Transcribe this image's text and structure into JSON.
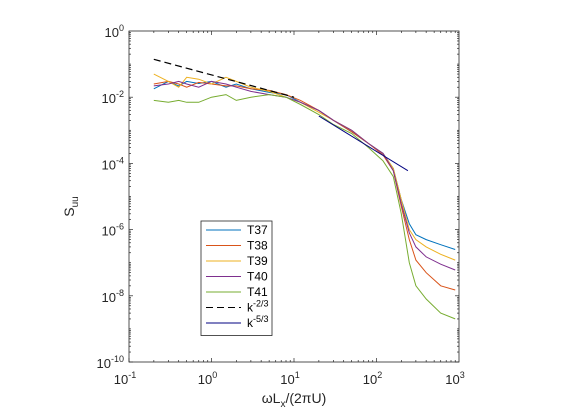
{
  "chart_data": {
    "type": "line",
    "xlabel": {
      "base": "ωL",
      "sub": "x",
      "tail": "/(2πU)"
    },
    "ylabel": {
      "base": "S",
      "sub": "uu"
    },
    "xscale": "log",
    "yscale": "log",
    "xlim": [
      0.1,
      1000
    ],
    "ylim": [
      1e-10,
      1
    ],
    "grid": false,
    "legend_position": "bottom-left",
    "x_ticks": [
      {
        "base": "10",
        "exp": "-1",
        "value": 0.1
      },
      {
        "base": "10",
        "exp": "0",
        "value": 1
      },
      {
        "base": "10",
        "exp": "1",
        "value": 10
      },
      {
        "base": "10",
        "exp": "2",
        "value": 100
      },
      {
        "base": "10",
        "exp": "3",
        "value": 1000
      }
    ],
    "y_ticks": [
      {
        "base": "10",
        "exp": "-10",
        "value": 1e-10
      },
      {
        "base": "10",
        "exp": "-8",
        "value": 1e-08
      },
      {
        "base": "10",
        "exp": "-6",
        "value": 1e-06
      },
      {
        "base": "10",
        "exp": "-4",
        "value": 0.0001
      },
      {
        "base": "10",
        "exp": "-2",
        "value": 0.01
      },
      {
        "base": "10",
        "exp": "0",
        "value": 1
      }
    ],
    "series": [
      {
        "name": "T37",
        "color": "#0072BD",
        "style": "solid",
        "x": [
          0.2,
          0.3,
          0.4,
          0.5,
          0.7,
          1,
          1.5,
          2,
          3,
          5,
          8,
          12,
          20,
          30,
          50,
          80,
          120,
          160,
          200,
          250,
          300,
          400,
          600,
          900
        ],
        "y": [
          0.018,
          0.03,
          0.022,
          0.03,
          0.026,
          0.03,
          0.02,
          0.025,
          0.018,
          0.014,
          0.012,
          0.007,
          0.004,
          0.002,
          0.0009,
          0.0004,
          0.0002,
          7e-05,
          8e-06,
          1.5e-06,
          7e-07,
          5e-07,
          3.5e-07,
          2.5e-07
        ]
      },
      {
        "name": "T38",
        "color": "#D95319",
        "style": "solid",
        "x": [
          0.2,
          0.3,
          0.4,
          0.5,
          0.7,
          1,
          1.5,
          2,
          3,
          5,
          8,
          12,
          20,
          30,
          50,
          80,
          120,
          160,
          200,
          250,
          300,
          400,
          600,
          900
        ],
        "y": [
          0.025,
          0.03,
          0.025,
          0.02,
          0.028,
          0.025,
          0.022,
          0.022,
          0.018,
          0.016,
          0.012,
          0.008,
          0.004,
          0.002,
          0.0009,
          0.0004,
          0.00018,
          6e-05,
          5e-06,
          5e-07,
          1.2e-07,
          5e-08,
          2e-08,
          1.5e-08
        ]
      },
      {
        "name": "T39",
        "color": "#EDB120",
        "style": "solid",
        "x": [
          0.2,
          0.3,
          0.4,
          0.5,
          0.7,
          1,
          1.5,
          2,
          3,
          5,
          8,
          12,
          20,
          30,
          50,
          80,
          120,
          160,
          200,
          250,
          300,
          400,
          600,
          900
        ],
        "y": [
          0.05,
          0.03,
          0.02,
          0.04,
          0.035,
          0.025,
          0.04,
          0.03,
          0.02,
          0.015,
          0.01,
          0.007,
          0.0035,
          0.002,
          0.001,
          0.0004,
          0.0002,
          7e-05,
          8e-06,
          1e-06,
          5e-07,
          3e-07,
          1.8e-07,
          1.2e-07
        ]
      },
      {
        "name": "T40",
        "color": "#7E2F8E",
        "style": "solid",
        "x": [
          0.2,
          0.3,
          0.4,
          0.5,
          0.7,
          1,
          1.5,
          2,
          3,
          5,
          8,
          12,
          20,
          30,
          50,
          80,
          120,
          160,
          200,
          250,
          300,
          400,
          600,
          900
        ],
        "y": [
          0.022,
          0.025,
          0.03,
          0.025,
          0.02,
          0.03,
          0.025,
          0.02,
          0.015,
          0.012,
          0.01,
          0.007,
          0.004,
          0.002,
          0.001,
          0.0004,
          0.0002,
          6e-05,
          6e-06,
          8e-07,
          3e-07,
          1.5e-07,
          9e-08,
          6e-08
        ]
      },
      {
        "name": "T41",
        "color": "#77AC30",
        "style": "solid",
        "x": [
          0.2,
          0.3,
          0.4,
          0.5,
          0.7,
          1,
          1.5,
          2,
          3,
          5,
          8,
          12,
          20,
          30,
          50,
          80,
          120,
          160,
          200,
          250,
          300,
          400,
          600,
          900
        ],
        "y": [
          0.008,
          0.007,
          0.008,
          0.007,
          0.007,
          0.01,
          0.012,
          0.008,
          0.01,
          0.012,
          0.01,
          0.006,
          0.003,
          0.0015,
          0.0008,
          0.0003,
          0.00012,
          4e-05,
          3e-06,
          1e-07,
          2e-08,
          8e-09,
          3e-09,
          2e-09
        ]
      },
      {
        "name": "k^{-2/3}",
        "label_base": "k",
        "label_exp": "-2/3",
        "color": "#000000",
        "style": "dashed",
        "x": [
          0.2,
          10
        ],
        "y": [
          0.14,
          0.01
        ]
      },
      {
        "name": "k^{-5/3}",
        "label_base": "k",
        "label_exp": "-5/3",
        "color": "#000080",
        "style": "solid",
        "x": [
          20,
          240
        ],
        "y": [
          0.0027,
          6e-05
        ]
      }
    ]
  }
}
